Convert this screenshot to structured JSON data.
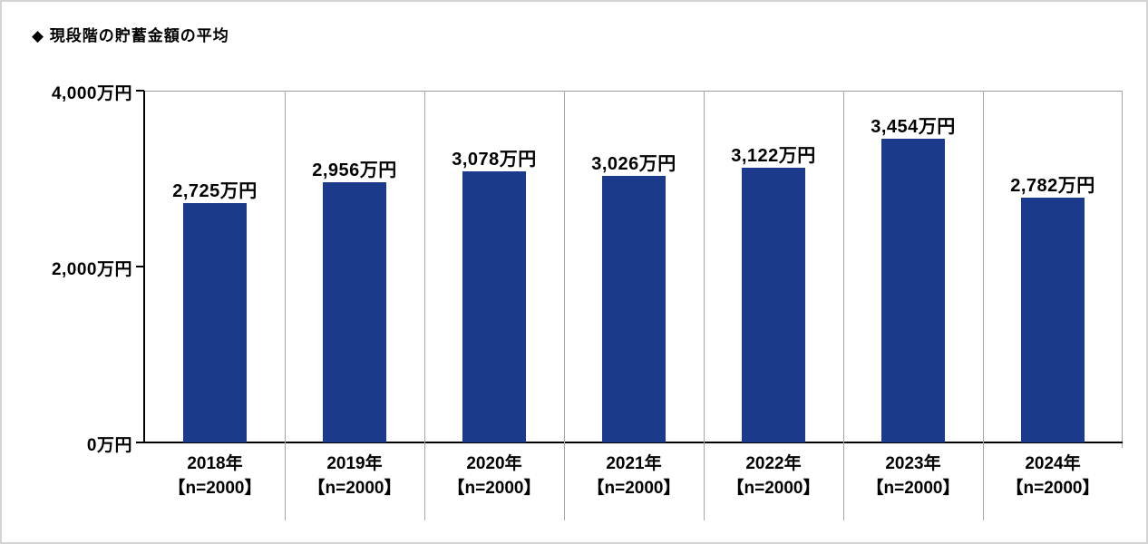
{
  "title": "◆ 現段階の貯蓄金額の平均",
  "chart_data": {
    "type": "bar",
    "categories": [
      "2018年",
      "2019年",
      "2020年",
      "2021年",
      "2022年",
      "2023年",
      "2024年"
    ],
    "category_sublabels": [
      "【n=2000】",
      "【n=2000】",
      "【n=2000】",
      "【n=2000】",
      "【n=2000】",
      "【n=2000】",
      "【n=2000】"
    ],
    "values": [
      2725,
      2956,
      3078,
      3026,
      3122,
      3454,
      2782
    ],
    "value_labels": [
      "2,725万円",
      "2,956万円",
      "3,078万円",
      "3,026万円",
      "3,122万円",
      "3,454万円",
      "2,782万円"
    ],
    "yticks": [
      {
        "value": 0,
        "label": "0万円"
      },
      {
        "value": 2000,
        "label": "2,000万円"
      },
      {
        "value": 4000,
        "label": "4,000万円"
      }
    ],
    "ylim": [
      0,
      4000
    ],
    "xlabel": "",
    "ylabel": "",
    "legend": "none",
    "grid": false,
    "colors": {
      "bar": "#1c3a8c",
      "axis": "#000000",
      "divider": "#a6a6a6",
      "frame_border": "#d4d4d4",
      "text": "#000000",
      "background": "#ffffff"
    }
  }
}
